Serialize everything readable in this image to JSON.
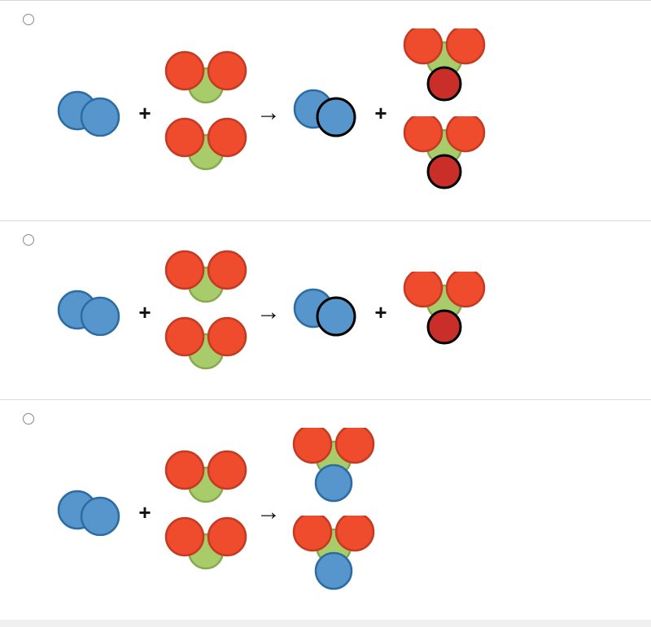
{
  "colors": {
    "blue_fill": "#5796cc",
    "blue_stroke": "#2b6ca3",
    "red_fill": "#ef4b2d",
    "red_stroke": "#c43a22",
    "darkred_fill": "#c92f28",
    "green_fill": "#a9cc6b",
    "green_stroke": "#86a84f",
    "black_stroke": "#000000",
    "divider": "#d8d8d8",
    "bg": "#ffffff"
  },
  "atom_radius": 23,
  "operators": {
    "plus": "+",
    "arrow": "→"
  },
  "options": [
    {
      "id": "opt1",
      "reactants": [
        {
          "molecules": [
            {
              "type": "diatomic_blue"
            }
          ]
        },
        {
          "molecules": [
            {
              "type": "bent_red_green"
            },
            {
              "type": "bent_red_green"
            }
          ]
        }
      ],
      "products": [
        {
          "molecules": [
            {
              "type": "diatomic_blue_outlined"
            }
          ]
        },
        {
          "molecules": [
            {
              "type": "bent_red_green_plus_darkred"
            },
            {
              "type": "bent_red_green_plus_darkred"
            }
          ]
        }
      ]
    },
    {
      "id": "opt2",
      "reactants": [
        {
          "molecules": [
            {
              "type": "diatomic_blue"
            }
          ]
        },
        {
          "molecules": [
            {
              "type": "bent_red_green"
            },
            {
              "type": "bent_red_green"
            }
          ]
        }
      ],
      "products": [
        {
          "molecules": [
            {
              "type": "diatomic_blue_outlined"
            }
          ]
        },
        {
          "molecules": [
            {
              "type": "bent_red_green_plus_darkred"
            }
          ]
        }
      ]
    },
    {
      "id": "opt3",
      "reactants": [
        {
          "molecules": [
            {
              "type": "diatomic_blue"
            }
          ]
        },
        {
          "molecules": [
            {
              "type": "bent_red_green"
            },
            {
              "type": "bent_red_green"
            }
          ]
        }
      ],
      "products": [
        {
          "molecules": [
            {
              "type": "bent_red_green_plus_blue"
            },
            {
              "type": "bent_red_green_plus_blue"
            }
          ]
        }
      ]
    }
  ]
}
